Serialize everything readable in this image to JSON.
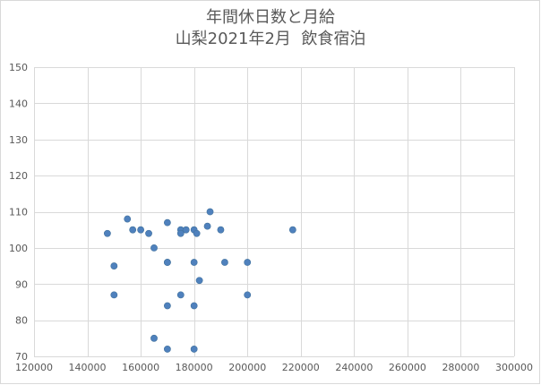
{
  "chart_data": {
    "type": "scatter",
    "title_lines": [
      "年間休日数と月給",
      "山梨2021年2月  飲食宿泊"
    ],
    "xlabel": "",
    "ylabel": "",
    "xlim": [
      120000,
      300000
    ],
    "ylim": [
      70,
      150
    ],
    "xticks": [
      120000,
      140000,
      160000,
      180000,
      200000,
      220000,
      240000,
      260000,
      280000,
      300000
    ],
    "yticks": [
      70,
      80,
      90,
      100,
      110,
      120,
      130,
      140,
      150
    ],
    "grid": true,
    "legend": "none",
    "marker_color": "#4f81bd",
    "points": [
      {
        "x": 147500,
        "y": 104
      },
      {
        "x": 150000,
        "y": 95
      },
      {
        "x": 150000,
        "y": 87
      },
      {
        "x": 155000,
        "y": 108
      },
      {
        "x": 157000,
        "y": 105
      },
      {
        "x": 160000,
        "y": 105
      },
      {
        "x": 163000,
        "y": 104
      },
      {
        "x": 165000,
        "y": 100
      },
      {
        "x": 165000,
        "y": 75
      },
      {
        "x": 170000,
        "y": 107
      },
      {
        "x": 170000,
        "y": 96
      },
      {
        "x": 170000,
        "y": 96
      },
      {
        "x": 170000,
        "y": 84
      },
      {
        "x": 170000,
        "y": 72
      },
      {
        "x": 175000,
        "y": 105
      },
      {
        "x": 175000,
        "y": 104
      },
      {
        "x": 175000,
        "y": 87
      },
      {
        "x": 177000,
        "y": 105
      },
      {
        "x": 180000,
        "y": 105
      },
      {
        "x": 181000,
        "y": 104
      },
      {
        "x": 180000,
        "y": 96
      },
      {
        "x": 180000,
        "y": 84
      },
      {
        "x": 180000,
        "y": 72
      },
      {
        "x": 182000,
        "y": 91
      },
      {
        "x": 185000,
        "y": 106
      },
      {
        "x": 186000,
        "y": 110
      },
      {
        "x": 190000,
        "y": 105
      },
      {
        "x": 191500,
        "y": 96
      },
      {
        "x": 200000,
        "y": 96
      },
      {
        "x": 200000,
        "y": 87
      },
      {
        "x": 217000,
        "y": 105
      }
    ]
  }
}
